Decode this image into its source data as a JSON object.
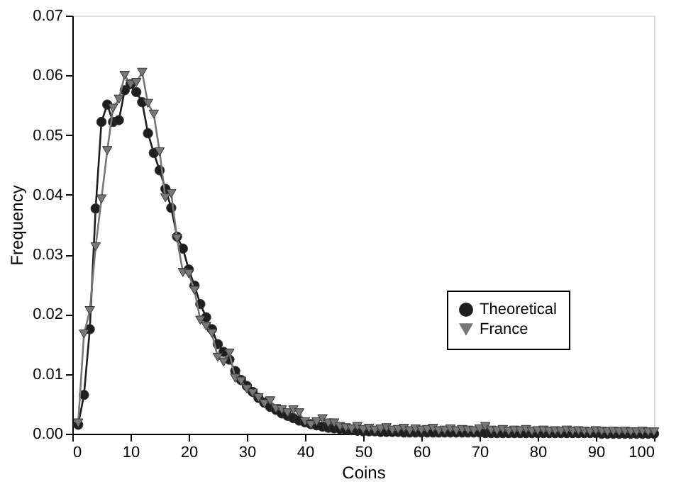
{
  "chart_data": {
    "type": "line",
    "xlabel": "Coins",
    "ylabel": "Frequency",
    "x": [
      1,
      2,
      3,
      4,
      5,
      6,
      7,
      8,
      9,
      10,
      11,
      12,
      13,
      14,
      15,
      16,
      17,
      18,
      19,
      20,
      21,
      22,
      23,
      24,
      25,
      26,
      27,
      28,
      29,
      30,
      31,
      32,
      33,
      34,
      35,
      36,
      37,
      38,
      39,
      40,
      41,
      42,
      43,
      44,
      45,
      46,
      47,
      48,
      49,
      50,
      51,
      52,
      53,
      54,
      55,
      56,
      57,
      58,
      59,
      60,
      61,
      62,
      63,
      64,
      65,
      66,
      67,
      68,
      69,
      70,
      71,
      72,
      73,
      74,
      75,
      76,
      77,
      78,
      79,
      80,
      81,
      82,
      83,
      84,
      85,
      86,
      87,
      88,
      89,
      90,
      91,
      92,
      93,
      94,
      95,
      96,
      97,
      98,
      99,
      100
    ],
    "series": [
      {
        "name": "Theoretical",
        "color": "#1e1e1e",
        "marker": "circle",
        "values": [
          0.0015,
          0.0065,
          0.0175,
          0.0377,
          0.0522,
          0.0551,
          0.0522,
          0.0525,
          0.0575,
          0.0585,
          0.0572,
          0.0555,
          0.0503,
          0.047,
          0.0441,
          0.041,
          0.0378,
          0.033,
          0.031,
          0.0275,
          0.0248,
          0.0217,
          0.0195,
          0.0175,
          0.015,
          0.0137,
          0.0124,
          0.0105,
          0.009,
          0.008,
          0.007,
          0.006,
          0.0052,
          0.0045,
          0.004,
          0.0034,
          0.003,
          0.0026,
          0.0022,
          0.0019,
          0.0016,
          0.0014,
          0.0012,
          0.001,
          0.0009,
          0.0008,
          0.0007,
          0.0006,
          0.0005,
          0.0004,
          0.0004,
          0.0004,
          0.0003,
          0.0003,
          0.0003,
          0.0003,
          0.0002,
          0.0002,
          0.0002,
          0.0002,
          0.0002,
          0.0002,
          0.0002,
          0.0002,
          0.0002,
          0.0002,
          0.0002,
          0.0002,
          0.0002,
          0.0002,
          0.0001,
          0.0001,
          0.0001,
          0.0001,
          0.0001,
          0.0001,
          0.0001,
          0.0001,
          0.0001,
          0.0001,
          0.0001,
          0.0001,
          0.0001,
          0.0001,
          0.0001,
          0.0001,
          0.0001,
          0.0001,
          0.0001,
          0.0001,
          0,
          0,
          0,
          0,
          0,
          0,
          0,
          0,
          0,
          0
        ]
      },
      {
        "name": "France",
        "color": "#777777",
        "marker": "triangle",
        "values": [
          0.0018,
          0.0167,
          0.0206,
          0.0313,
          0.0393,
          0.0474,
          0.0545,
          0.056,
          0.06,
          0.0585,
          0.0588,
          0.0605,
          0.0553,
          0.0535,
          0.0472,
          0.0395,
          0.0402,
          0.0327,
          0.027,
          0.0268,
          0.024,
          0.019,
          0.018,
          0.0168,
          0.0128,
          0.012,
          0.0135,
          0.0093,
          0.0088,
          0.0075,
          0.0068,
          0.006,
          0.005,
          0.0055,
          0.0042,
          0.004,
          0.0035,
          0.004,
          0.0035,
          0.002,
          0.0015,
          0.002,
          0.0025,
          0.0018,
          0.0018,
          0.0012,
          0.001,
          0.0008,
          0.0012,
          0.0007,
          0.0009,
          0.0006,
          0.0008,
          0.001,
          0.0006,
          0.0007,
          0.0009,
          0.0005,
          0.0008,
          0.0006,
          0.0007,
          0.0009,
          0.0005,
          0.0006,
          0.0008,
          0.0005,
          0.0007,
          0.0006,
          0.0005,
          0.0008,
          0.0012,
          0.0006,
          0.0005,
          0.0007,
          0.0004,
          0.0006,
          0.0005,
          0.0007,
          0.0004,
          0.0005,
          0.0006,
          0.0004,
          0.0005,
          0.0004,
          0.0006,
          0.0004,
          0.0005,
          0.0004,
          0.0003,
          0.0005,
          0.0004,
          0.0003,
          0.0004,
          0.0003,
          0.0004,
          0.0003,
          0.0003,
          0.0004,
          0.0003,
          0.0003
        ]
      }
    ],
    "xlim": [
      0,
      100
    ],
    "xticks": [
      0,
      10,
      20,
      30,
      40,
      50,
      60,
      70,
      80,
      90,
      100
    ],
    "ylim": [
      0,
      0.07
    ],
    "yticks": [
      {
        "value": 0,
        "label": "0.00"
      },
      {
        "value": 0.01,
        "label": "0.01"
      },
      {
        "value": 0.02,
        "label": "0.02"
      },
      {
        "value": 0.03,
        "label": "0.03"
      },
      {
        "value": 0.04,
        "label": "0.04"
      },
      {
        "value": 0.05,
        "label": "0.05"
      },
      {
        "value": 0.06,
        "label": "0.06"
      },
      {
        "value": 0.07,
        "label": "0.07"
      }
    ],
    "grid": false,
    "legend": "bottom right",
    "line_style": "solid"
  }
}
